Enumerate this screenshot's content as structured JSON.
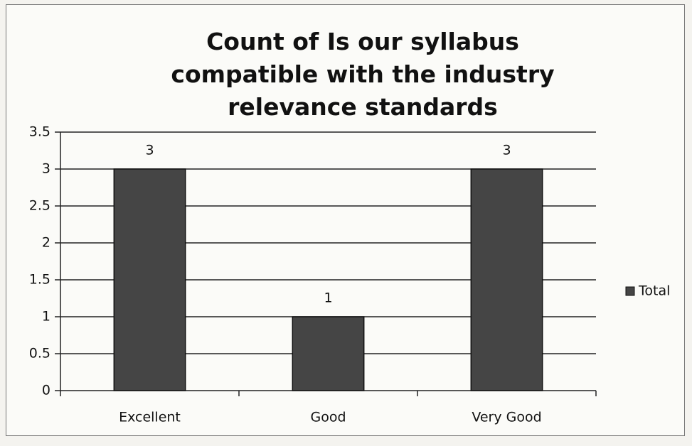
{
  "chart_data": {
    "type": "bar",
    "title": "Count of Is our syllabus compatible with the industry relevance standards",
    "categories": [
      "Excellent",
      "Good",
      "Very Good"
    ],
    "series": [
      {
        "name": "Total",
        "color": "#454545",
        "values": [
          3,
          1,
          3
        ]
      }
    ],
    "ylim": [
      0,
      3.5
    ],
    "yticks": [
      0,
      0.5,
      1,
      1.5,
      2,
      2.5,
      3,
      3.5
    ],
    "grid": true,
    "legend": "right"
  }
}
